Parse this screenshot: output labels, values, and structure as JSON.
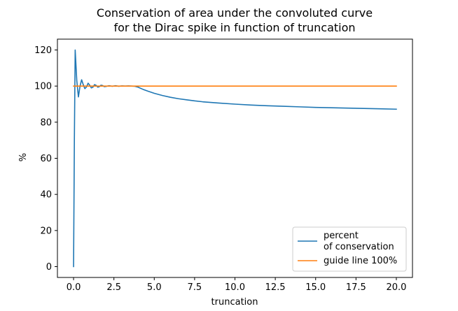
{
  "chart_data": {
    "type": "line",
    "title_lines": [
      "Conservation of area under the convoluted curve",
      "for the Dirac spike in function of truncation"
    ],
    "xlabel": "truncation",
    "ylabel": "%",
    "xlim": [
      -1.0,
      21.0
    ],
    "ylim": [
      -6.0,
      126.0
    ],
    "x_ticks": [
      0.0,
      2.5,
      5.0,
      7.5,
      10.0,
      12.5,
      15.0,
      17.5,
      20.0
    ],
    "x_tick_labels": [
      "0.0",
      "2.5",
      "5.0",
      "7.5",
      "10.0",
      "12.5",
      "15.0",
      "17.5",
      "20.0"
    ],
    "y_ticks": [
      0,
      20,
      40,
      60,
      80,
      100,
      120
    ],
    "y_tick_labels": [
      "0",
      "20",
      "40",
      "60",
      "80",
      "100",
      "120"
    ],
    "grid": false,
    "legend_position": "bottom-right",
    "series": [
      {
        "name": "percent\nof conservation",
        "legend_lines": [
          "percent",
          "of conservation"
        ],
        "color": "#1f77b4",
        "x": [
          0.0,
          0.05,
          0.1,
          0.2,
          0.3,
          0.4,
          0.5,
          0.6,
          0.7,
          0.8,
          0.9,
          1.0,
          1.1,
          1.2,
          1.3,
          1.4,
          1.5,
          1.6,
          1.7,
          1.8,
          1.9,
          2.0,
          2.2,
          2.4,
          2.6,
          2.8,
          3.0,
          3.2,
          3.4,
          3.6,
          3.8,
          4.0,
          4.3,
          4.6,
          5.0,
          5.5,
          6.0,
          6.5,
          7.0,
          7.5,
          8.0,
          9.0,
          10.0,
          11.0,
          12.0,
          13.0,
          14.0,
          15.0,
          16.0,
          17.0,
          18.0,
          19.0,
          20.0
        ],
        "y": [
          0.0,
          70.0,
          120.0,
          103.0,
          94.0,
          100.0,
          103.5,
          100.8,
          98.6,
          99.5,
          101.6,
          100.5,
          99.0,
          99.4,
          100.8,
          100.4,
          99.4,
          99.7,
          100.5,
          100.3,
          99.7,
          99.8,
          100.2,
          99.9,
          100.2,
          99.9,
          100.1,
          100.0,
          100.1,
          100.0,
          99.9,
          99.4,
          98.2,
          97.2,
          96.0,
          94.8,
          93.8,
          93.0,
          92.4,
          91.8,
          91.3,
          90.6,
          90.0,
          89.5,
          89.1,
          88.8,
          88.5,
          88.2,
          88.0,
          87.8,
          87.6,
          87.4,
          87.2
        ]
      },
      {
        "name": "guide line 100%",
        "legend_lines": [
          "guide line 100%"
        ],
        "color": "#ff7f0e",
        "x": [
          0.0,
          20.0
        ],
        "y": [
          100.0,
          100.0
        ]
      }
    ]
  }
}
